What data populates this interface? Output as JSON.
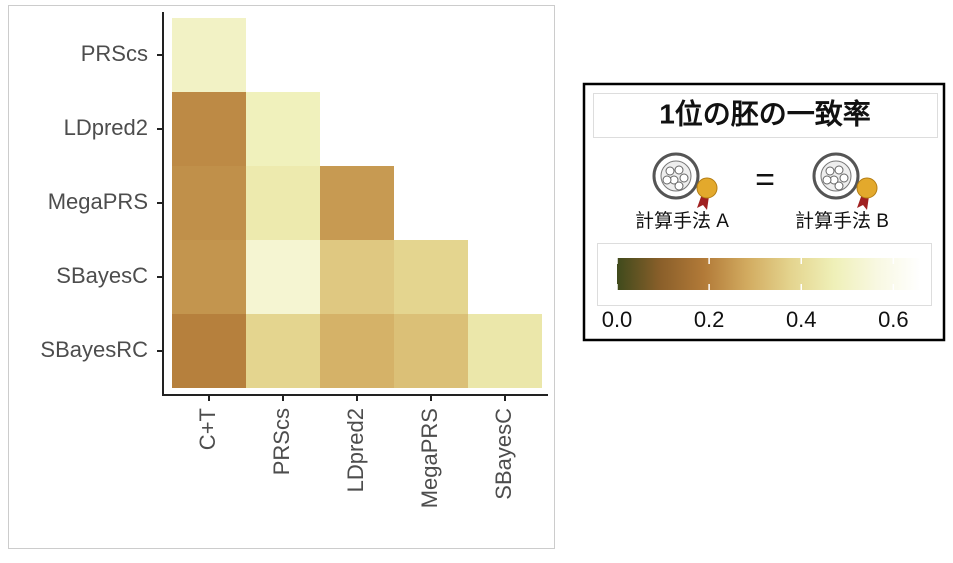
{
  "chart_data": {
    "type": "heatmap",
    "rows": [
      "PRScs",
      "LDpred2",
      "MegaPRS",
      "SBayesC",
      "SBayesRC"
    ],
    "columns": [
      "C+T",
      "PRScs",
      "LDpred2",
      "MegaPRS",
      "SBayesC"
    ],
    "values": [
      [
        0.5,
        null,
        null,
        null,
        null
      ],
      [
        0.22,
        0.48,
        null,
        null,
        null
      ],
      [
        0.23,
        0.45,
        0.25,
        null,
        null
      ],
      [
        0.24,
        0.53,
        0.35,
        0.38,
        null
      ],
      [
        0.2,
        0.38,
        0.3,
        0.33,
        0.44
      ]
    ],
    "zlim": [
      0,
      0.66
    ],
    "zticks": [
      {
        "value": 0,
        "label": "0.0"
      },
      0.2,
      0.4,
      0.6
    ],
    "colors": [
      "#3f4a1c",
      "#8a5f2a",
      "#b27a38",
      "#d2ab60",
      "#e4d48e",
      "#eff0b8",
      "#f8f8e2",
      "#ffffff"
    ],
    "legend": {
      "title": "1位の胚の一致率",
      "left_label": "計算手法 A",
      "equals": "=",
      "right_label": "計算手法 B"
    }
  }
}
